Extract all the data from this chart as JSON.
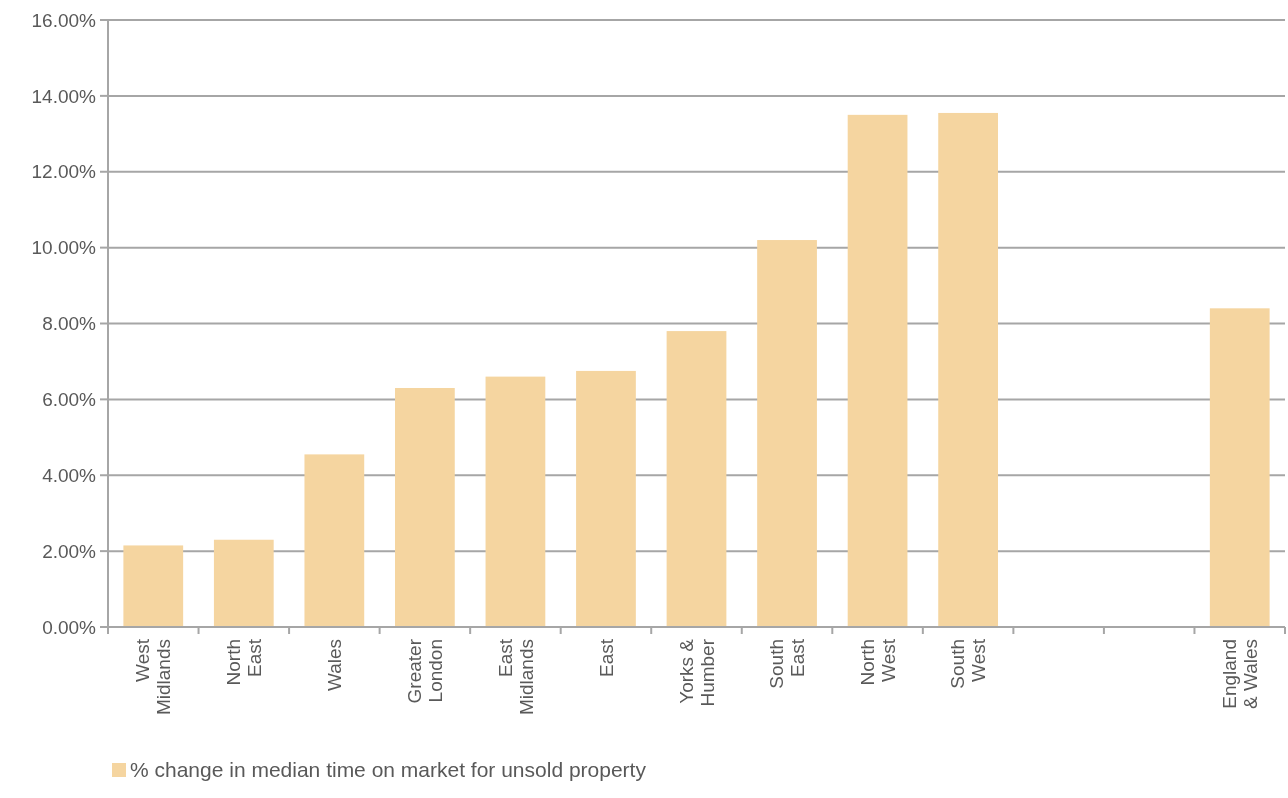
{
  "chart_data": {
    "type": "bar",
    "categories": [
      "West\nMidlands",
      "North\nEast",
      "Wales",
      "Greater\nLondon",
      "East\nMidlands",
      "East",
      "Yorks &\nHumber",
      "South\nEast",
      "North\nWest",
      "South\nWest",
      null,
      null,
      "England\n& Wales"
    ],
    "series": [
      {
        "name": "% change in median time on market for unsold property",
        "color": "#f5d5a0",
        "values": [
          2.15,
          2.3,
          4.55,
          6.3,
          6.6,
          6.75,
          7.8,
          10.2,
          13.5,
          13.55,
          null,
          null,
          8.4
        ]
      }
    ],
    "ylim": [
      0,
      16
    ],
    "yticks": [
      {
        "value": 0,
        "label": "0.00%"
      },
      {
        "value": 2,
        "label": "2.00%"
      },
      {
        "value": 4,
        "label": "4.00%"
      },
      {
        "value": 6,
        "label": "6.00%"
      },
      {
        "value": 8,
        "label": "8.00%"
      },
      {
        "value": 10,
        "label": "10.00%"
      },
      {
        "value": 12,
        "label": "12.00%"
      },
      {
        "value": 14,
        "label": "14.00%"
      },
      {
        "value": 16,
        "label": "16.00%"
      }
    ],
    "grid": "y",
    "legend": "bottom left"
  }
}
